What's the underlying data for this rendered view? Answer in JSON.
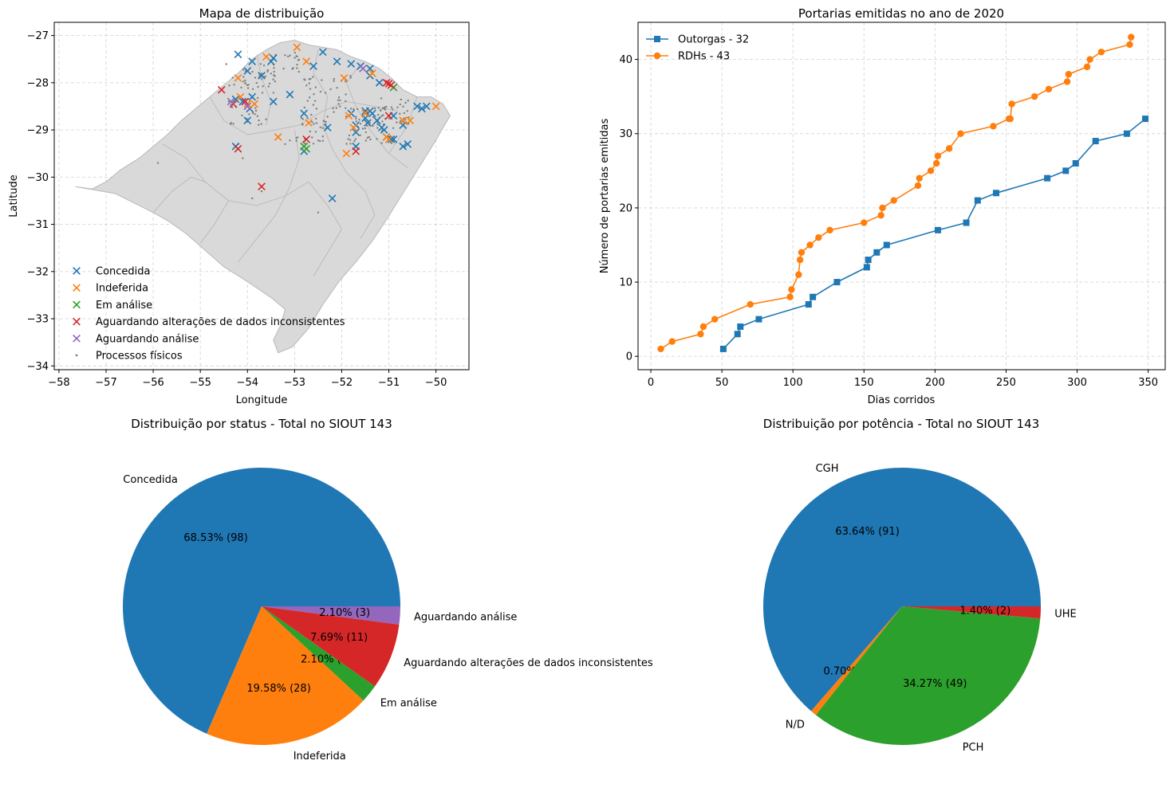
{
  "colors": {
    "blue": "#1f77b4",
    "orange": "#ff7f0e",
    "green": "#2ca02c",
    "red": "#d62728",
    "purple": "#9467bd",
    "gray": "#7f7f7f",
    "map_fill": "#d9d9d9",
    "map_edge": "#b8b8b8"
  },
  "chart_data": [
    {
      "type": "scatter",
      "title": "Mapa de distribuição",
      "xlabel": "Longitude",
      "ylabel": "Latitude",
      "xlim": [
        -58.1,
        -49.3
      ],
      "ylim": [
        -34.08,
        -26.72
      ],
      "xticks": [
        -58,
        -57,
        -56,
        -55,
        -54,
        -53,
        -52,
        -51,
        -50
      ],
      "xtick_labels": [
        "−58",
        "−57",
        "−56",
        "−55",
        "−54",
        "−53",
        "−52",
        "−51",
        "−50"
      ],
      "yticks": [
        -34,
        -33,
        -32,
        -31,
        -30,
        -29,
        -28,
        -27
      ],
      "ytick_labels": [
        "−34",
        "−33",
        "−32",
        "−31",
        "−30",
        "−29",
        "−28",
        "−27"
      ],
      "grid": true,
      "legend_position": "lower-left",
      "series": [
        {
          "name": "Concedida",
          "color": "#1f77b4",
          "marker": "x",
          "points": [
            [
              -54.2,
              -27.4
            ],
            [
              -53.9,
              -27.55
            ],
            [
              -53.5,
              -27.55
            ],
            [
              -53.45,
              -27.48
            ],
            [
              -53.7,
              -27.85
            ],
            [
              -54.0,
              -27.75
            ],
            [
              -52.4,
              -27.35
            ],
            [
              -52.6,
              -27.65
            ],
            [
              -51.8,
              -27.6
            ],
            [
              -51.6,
              -27.65
            ],
            [
              -51.4,
              -27.7
            ],
            [
              -51.4,
              -27.85
            ],
            [
              -51.2,
              -28.0
            ],
            [
              -52.1,
              -27.55
            ],
            [
              -54.25,
              -28.35
            ],
            [
              -54.1,
              -28.4
            ],
            [
              -53.95,
              -28.55
            ],
            [
              -54.0,
              -28.8
            ],
            [
              -53.9,
              -28.3
            ],
            [
              -53.45,
              -28.4
            ],
            [
              -53.1,
              -28.25
            ],
            [
              -52.8,
              -28.65
            ],
            [
              -52.3,
              -28.95
            ],
            [
              -51.8,
              -28.65
            ],
            [
              -51.7,
              -28.9
            ],
            [
              -51.7,
              -29.05
            ],
            [
              -51.5,
              -28.75
            ],
            [
              -51.5,
              -28.6
            ],
            [
              -51.45,
              -28.85
            ],
            [
              -51.35,
              -28.65
            ],
            [
              -51.4,
              -28.6
            ],
            [
              -51.25,
              -28.8
            ],
            [
              -51.1,
              -29.0
            ],
            [
              -50.9,
              -28.7
            ],
            [
              -50.9,
              -29.2
            ],
            [
              -50.7,
              -28.9
            ],
            [
              -50.6,
              -29.3
            ],
            [
              -50.7,
              -29.35
            ],
            [
              -50.4,
              -28.5
            ],
            [
              -50.3,
              -28.55
            ],
            [
              -50.2,
              -28.5
            ],
            [
              -54.25,
              -29.35
            ],
            [
              -52.8,
              -29.45
            ],
            [
              -52.2,
              -30.45
            ],
            [
              -51.7,
              -29.35
            ],
            [
              -50.95,
              -29.2
            ],
            [
              -51.05,
              -29.15
            ],
            [
              -51.15,
              -28.95
            ]
          ]
        },
        {
          "name": "Indeferida",
          "color": "#ff7f0e",
          "marker": "x",
          "points": [
            [
              -53.6,
              -27.45
            ],
            [
              -54.2,
              -27.9
            ],
            [
              -52.95,
              -27.25
            ],
            [
              -52.75,
              -27.55
            ],
            [
              -51.95,
              -27.9
            ],
            [
              -51.35,
              -27.8
            ],
            [
              -54.0,
              -28.45
            ],
            [
              -53.85,
              -28.45
            ],
            [
              -54.15,
              -28.3
            ],
            [
              -53.35,
              -29.15
            ],
            [
              -52.7,
              -28.85
            ],
            [
              -51.85,
              -28.7
            ],
            [
              -51.75,
              -28.95
            ],
            [
              -51.5,
              -28.65
            ],
            [
              -51.05,
              -29.15
            ],
            [
              -51.0,
              -29.2
            ],
            [
              -50.7,
              -28.8
            ],
            [
              -50.55,
              -28.8
            ],
            [
              -50.0,
              -28.5
            ],
            [
              -51.9,
              -29.5
            ]
          ]
        },
        {
          "name": "Em análise",
          "color": "#2ca02c",
          "marker": "x",
          "points": [
            [
              -52.8,
              -29.35
            ],
            [
              -52.75,
              -29.4
            ],
            [
              -50.9,
              -28.1
            ]
          ]
        },
        {
          "name": "Aguardando alterações de dados inconsistentes",
          "color": "#d62728",
          "marker": "x",
          "points": [
            [
              -54.55,
              -28.15
            ],
            [
              -54.3,
              -28.45
            ],
            [
              -54.2,
              -29.4
            ],
            [
              -53.7,
              -30.2
            ],
            [
              -52.75,
              -29.2
            ],
            [
              -51.7,
              -29.45
            ],
            [
              -51.05,
              -28.0
            ],
            [
              -51.0,
              -28.7
            ],
            [
              -50.95,
              -28.05
            ],
            [
              -51.0,
              -28.02
            ],
            [
              -54.05,
              -28.4
            ]
          ]
        },
        {
          "name": "Aguardando análise",
          "color": "#9467bd",
          "marker": "x",
          "points": [
            [
              -54.35,
              -28.4
            ],
            [
              -51.55,
              -27.7
            ],
            [
              -54.0,
              -28.5
            ]
          ]
        },
        {
          "name": "Processos físicos",
          "color": "#7f7f7f",
          "marker": "dot",
          "points": "cluster"
        }
      ]
    },
    {
      "type": "line",
      "title": "Portarias emitidas no ano de 2020",
      "xlabel": "Dias corridos",
      "ylabel": "Número de portarias emitidas",
      "xlim": [
        -9,
        362
      ],
      "ylim": [
        -1.8,
        45
      ],
      "xticks": [
        0,
        50,
        100,
        150,
        200,
        250,
        300,
        350
      ],
      "yticks": [
        0,
        10,
        20,
        30,
        40
      ],
      "grid": true,
      "legend_position": "top-left",
      "series": [
        {
          "name": "Outorgas - 32",
          "color": "#1f77b4",
          "marker": "s",
          "x": [
            51,
            61,
            63,
            76,
            111,
            114,
            131,
            152,
            153,
            159,
            166,
            202,
            222,
            230,
            243,
            279,
            292,
            299,
            313,
            335,
            348
          ],
          "y": [
            1,
            3,
            4,
            5,
            7,
            8,
            10,
            12,
            13,
            14,
            15,
            17,
            18,
            21,
            22,
            24,
            25,
            26,
            29,
            30,
            32
          ]
        },
        {
          "name": "RDHs - 43",
          "color": "#ff7f0e",
          "marker": "o",
          "x": [
            7,
            15,
            35,
            37,
            45,
            70,
            98,
            99,
            104,
            105,
            106,
            112,
            118,
            126,
            150,
            162,
            163,
            171,
            188,
            189,
            197,
            201,
            202,
            210,
            218,
            241,
            252,
            253,
            254,
            270,
            280,
            293,
            294,
            307,
            309,
            317,
            337,
            338
          ],
          "y": [
            1,
            2,
            3,
            4,
            5,
            7,
            8,
            9,
            11,
            13,
            14,
            15,
            16,
            17,
            18,
            19,
            20,
            21,
            23,
            24,
            25,
            26,
            27,
            28,
            30,
            31,
            32,
            32,
            34,
            35,
            36,
            37,
            38,
            39,
            40,
            41,
            42,
            43
          ]
        }
      ]
    },
    {
      "type": "pie",
      "title": "Distribuição por status - Total no SIOUT 143",
      "slices": [
        {
          "label": "Concedida",
          "value": 98,
          "autopct": "68.53%  (98)",
          "color": "#1f77b4"
        },
        {
          "label": "Indeferida",
          "value": 28,
          "autopct": "19.58%  (28)",
          "color": "#ff7f0e"
        },
        {
          "label": "Em análise",
          "value": 3,
          "autopct": "2.10%  (3)",
          "color": "#2ca02c"
        },
        {
          "label": "Aguardando alterações de dados inconsistentes",
          "value": 11,
          "autopct": "7.69%  (11)",
          "color": "#d62728"
        },
        {
          "label": "Aguardando análise",
          "value": 3,
          "autopct": "2.10%  (3)",
          "color": "#9467bd"
        }
      ]
    },
    {
      "type": "pie",
      "title": "Distribuição por potência - Total no SIOUT 143",
      "slices": [
        {
          "label": "CGH",
          "value": 91,
          "autopct": "63.64%  (91)",
          "color": "#1f77b4"
        },
        {
          "label": "N/D",
          "value": 1,
          "autopct": "0.70%  (1)",
          "color": "#ff7f0e"
        },
        {
          "label": "PCH",
          "value": 49,
          "autopct": "34.27%  (49)",
          "color": "#2ca02c"
        },
        {
          "label": "UHE",
          "value": 2,
          "autopct": "1.40%  (2)",
          "color": "#d62728"
        }
      ]
    }
  ]
}
